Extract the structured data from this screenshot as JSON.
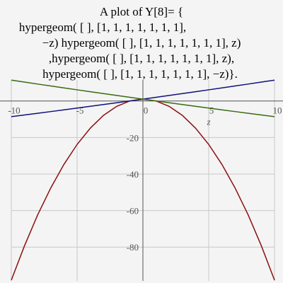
{
  "chart_data": {
    "type": "line",
    "title": [
      "A plot of Y[8]= {",
      "hypergeom( [ ], [1, 1, 1, 1, 1, 1, 1],",
      "−z) hypergeom( [ ], [1, 1, 1, 1, 1, 1, 1], z)",
      ",hypergeom( [ ], [1, 1, 1, 1, 1, 1, 1], z),",
      "hypergeom( [ ], [1, 1, 1, 1, 1, 1, 1], −z)}."
    ],
    "x_label": "z",
    "x": [
      -10,
      -9,
      -8,
      -7,
      -6,
      -5,
      -4,
      -3,
      -2,
      -1,
      0,
      1,
      2,
      3,
      4,
      5,
      6,
      7,
      8,
      9,
      10
    ],
    "series": [
      {
        "color": "#8b1010",
        "values": [
          -98.1,
          -79.3,
          -62.4,
          -47.6,
          -34.7,
          -23.8,
          -14.9,
          -7.9,
          -3.0,
          0,
          1,
          0,
          -3.0,
          -7.9,
          -14.9,
          -23.8,
          -34.7,
          -47.6,
          -62.4,
          -79.3,
          -98.1
        ]
      },
      {
        "color": "#10107a",
        "values": [
          -8.61,
          -7.68,
          -6.75,
          -5.81,
          -4.86,
          -3.9,
          -2.94,
          -1.96,
          -0.98,
          0,
          1,
          2,
          3.02,
          4.04,
          5.06,
          6.1,
          7.14,
          8.19,
          9.25,
          10.32,
          11.39
        ]
      },
      {
        "color": "#3a6a10",
        "values": [
          11.39,
          10.32,
          9.25,
          8.19,
          7.14,
          6.1,
          5.06,
          4.04,
          3.02,
          2,
          1,
          0,
          -0.98,
          -1.96,
          -2.94,
          -3.9,
          -4.86,
          -5.81,
          -6.75,
          -7.68,
          -8.61
        ]
      }
    ],
    "xlim": [
      -10,
      10
    ],
    "ylim": [
      -98.5,
      11.5
    ],
    "xticks": [
      -10,
      -5,
      0,
      5,
      10
    ],
    "yticks": [
      -80,
      -60,
      -40,
      -20
    ],
    "grid": true
  }
}
